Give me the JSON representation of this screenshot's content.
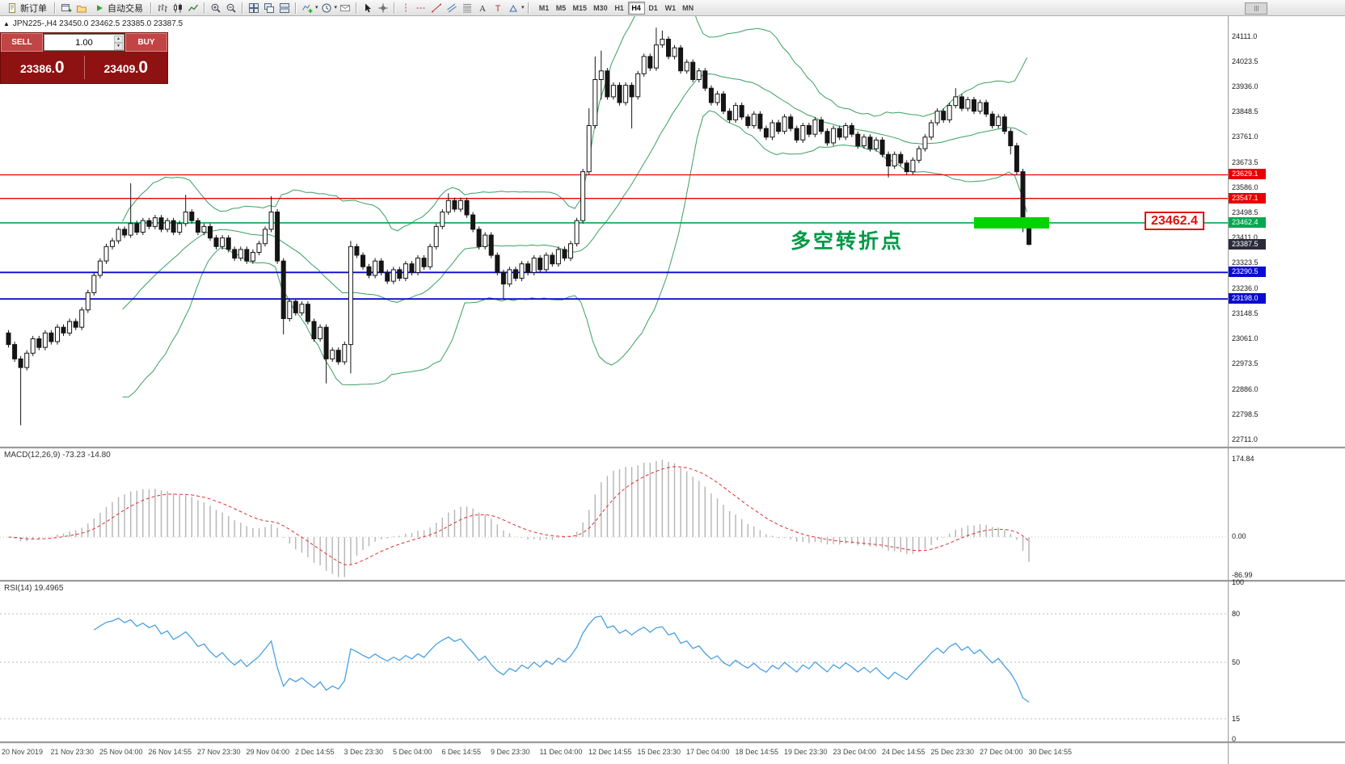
{
  "toolbar": {
    "new_order": "新订单",
    "auto_trading": "自动交易",
    "timeframes": [
      "M1",
      "M5",
      "M15",
      "M30",
      "H1",
      "H4",
      "D1",
      "W1",
      "MN"
    ],
    "active_timeframe": "H4"
  },
  "symbol_header": "JPN225-,H4  23450.0 23462.5 23385.0 23387.5",
  "trade_panel": {
    "sell": "SELL",
    "buy": "BUY",
    "volume": "1.00",
    "sell_price": "23386.",
    "sell_price_big": "0",
    "buy_price": "23409.",
    "buy_price_big": "0"
  },
  "main_chart": {
    "axis_labels": [
      "24111.0",
      "24023.5",
      "23936.0",
      "23848.5",
      "23761.0",
      "23673.5",
      "23586.0",
      "23498.5",
      "23411.0",
      "23323.5",
      "23236.0",
      "23148.5",
      "23061.0",
      "22973.5",
      "22886.0",
      "22798.5",
      "22711.0"
    ],
    "hlines": [
      {
        "price": 23629.1,
        "label": "23629.1",
        "color": "#e80000",
        "width": 1.3
      },
      {
        "price": 23547.1,
        "label": "23547.1",
        "color": "#e80000",
        "width": 1.3
      },
      {
        "price": 23462.4,
        "label": "23462.4",
        "color": "#00a94f",
        "width": 1.6
      },
      {
        "price": 23290.5,
        "label": "23290.5",
        "color": "#0a0ad0",
        "width": 1.8
      },
      {
        "price": 23198.0,
        "label": "23198.0",
        "color": "#0a0ad0",
        "width": 1.8
      }
    ],
    "current_price_tag": {
      "label": "23387.5",
      "price": 23387.5,
      "bg": "#2b2b3b"
    },
    "highlight_bar": {
      "price": 23462.4,
      "color": "#00d300"
    },
    "annotation": "多空转折点",
    "price_callout": "23462.4"
  },
  "macd_panel": {
    "label": "MACD(12,26,9) -73.23 -14.80",
    "axis_labels": [
      "174.84",
      "0.00",
      "-86.99"
    ]
  },
  "rsi_panel": {
    "label": "RSI(14) 19.4965",
    "axis_labels": [
      "100",
      "80",
      "50",
      "15",
      "0"
    ],
    "levels": [
      80,
      50,
      15
    ]
  },
  "time_axis": [
    "20 Nov 2019",
    "21 Nov 23:30",
    "25 Nov 04:00",
    "26 Nov 14:55",
    "27 Nov 23:30",
    "29 Nov 04:00",
    "2 Dec 14:55",
    "3 Dec 23:30",
    "5 Dec 04:00",
    "6 Dec 14:55",
    "9 Dec 23:30",
    "11 Dec 04:00",
    "12 Dec 14:55",
    "15 Dec 23:30",
    "17 Dec 04:00",
    "18 Dec 14:55",
    "19 Dec 23:30",
    "23 Dec 04:00",
    "24 Dec 14:55",
    "25 Dec 23:30",
    "27 Dec 04:00",
    "30 Dec 14:55"
  ],
  "colors": {
    "candle_up": "#ffffff",
    "candle_down": "#151515",
    "candle_stroke": "#151515",
    "bollinger": "#3aa060",
    "macd_hist": "#b4b4b4",
    "macd_signal": "#e03030",
    "rsi_line": "#4aa0e0",
    "annotation": "#009944",
    "callout": "#e01010",
    "trade_panel_bg": "#8e1212",
    "trade_button_bg": "#c24444"
  },
  "chart_data": {
    "type": "candlestick",
    "symbol": "JPN225-",
    "timeframe": "H4",
    "current_ohlc": {
      "open": 23450.0,
      "high": 23462.5,
      "low": 23385.0,
      "close": 23387.5
    },
    "visible_price_range": [
      22680,
      24180
    ],
    "indicators": [
      "Bollinger Bands",
      "MACD(12,26,9)",
      "RSI(14)"
    ],
    "macd_current": [
      -73.23,
      -14.8
    ],
    "rsi_current": 19.4965,
    "support_resistance_levels": [
      23629.1,
      23547.1,
      23462.4,
      23290.5,
      23198.0
    ],
    "candles_ohlc": [
      [
        23080,
        23090,
        23030,
        23040
      ],
      [
        23040,
        23050,
        22980,
        22990
      ],
      [
        22990,
        23000,
        22760,
        22960
      ],
      [
        22960,
        23020,
        22950,
        23010
      ],
      [
        23010,
        23070,
        23000,
        23060
      ],
      [
        23060,
        23070,
        23020,
        23030
      ],
      [
        23030,
        23090,
        23020,
        23080
      ],
      [
        23080,
        23090,
        23040,
        23050
      ],
      [
        23050,
        23110,
        23040,
        23100
      ],
      [
        23100,
        23110,
        23070,
        23080
      ],
      [
        23080,
        23130,
        23070,
        23120
      ],
      [
        23120,
        23130,
        23090,
        23100
      ],
      [
        23100,
        23170,
        23090,
        23160
      ],
      [
        23160,
        23230,
        23150,
        23220
      ],
      [
        23220,
        23290,
        23210,
        23280
      ],
      [
        23280,
        23340,
        23270,
        23330
      ],
      [
        23330,
        23390,
        23320,
        23380
      ],
      [
        23380,
        23410,
        23370,
        23400
      ],
      [
        23400,
        23450,
        23390,
        23440
      ],
      [
        23440,
        23450,
        23410,
        23420
      ],
      [
        23420,
        23600,
        23410,
        23460
      ],
      [
        23460,
        23470,
        23420,
        23430
      ],
      [
        23430,
        23480,
        23420,
        23470
      ],
      [
        23470,
        23480,
        23440,
        23450
      ],
      [
        23450,
        23490,
        23440,
        23480
      ],
      [
        23480,
        23490,
        23430,
        23440
      ],
      [
        23440,
        23480,
        23430,
        23470
      ],
      [
        23470,
        23480,
        23420,
        23430
      ],
      [
        23430,
        23470,
        23420,
        23460
      ],
      [
        23460,
        23560,
        23450,
        23500
      ],
      [
        23500,
        23510,
        23460,
        23470
      ],
      [
        23470,
        23480,
        23420,
        23430
      ],
      [
        23430,
        23460,
        23420,
        23450
      ],
      [
        23450,
        23460,
        23400,
        23410
      ],
      [
        23410,
        23420,
        23370,
        23380
      ],
      [
        23380,
        23420,
        23370,
        23410
      ],
      [
        23410,
        23420,
        23360,
        23370
      ],
      [
        23370,
        23380,
        23330,
        23340
      ],
      [
        23340,
        23380,
        23330,
        23370
      ],
      [
        23370,
        23380,
        23320,
        23330
      ],
      [
        23330,
        23370,
        23320,
        23360
      ],
      [
        23360,
        23400,
        23350,
        23390
      ],
      [
        23390,
        23450,
        23380,
        23440
      ],
      [
        23440,
        23555,
        23430,
        23500
      ],
      [
        23500,
        23510,
        23320,
        23330
      ],
      [
        23330,
        23340,
        23075,
        23130
      ],
      [
        23130,
        23200,
        23120,
        23190
      ],
      [
        23190,
        23200,
        23140,
        23150
      ],
      [
        23150,
        23190,
        23140,
        23180
      ],
      [
        23180,
        23190,
        23110,
        23120
      ],
      [
        23120,
        23130,
        23050,
        23060
      ],
      [
        23060,
        23110,
        23050,
        23100
      ],
      [
        23100,
        23110,
        22905,
        22990
      ],
      [
        22990,
        23030,
        22980,
        23020
      ],
      [
        23020,
        23030,
        22970,
        22980
      ],
      [
        22980,
        23050,
        22970,
        23040
      ],
      [
        23040,
        23400,
        22940,
        23380
      ],
      [
        23380,
        23390,
        23340,
        23350
      ],
      [
        23350,
        23360,
        23300,
        23310
      ],
      [
        23310,
        23320,
        23270,
        23280
      ],
      [
        23280,
        23340,
        23270,
        23330
      ],
      [
        23330,
        23340,
        23280,
        23290
      ],
      [
        23290,
        23300,
        23250,
        23260
      ],
      [
        23260,
        23310,
        23250,
        23300
      ],
      [
        23300,
        23310,
        23260,
        23270
      ],
      [
        23270,
        23330,
        23260,
        23320
      ],
      [
        23320,
        23330,
        23280,
        23290
      ],
      [
        23290,
        23350,
        23280,
        23340
      ],
      [
        23340,
        23350,
        23300,
        23310
      ],
      [
        23310,
        23390,
        23300,
        23380
      ],
      [
        23380,
        23460,
        23370,
        23450
      ],
      [
        23450,
        23510,
        23440,
        23500
      ],
      [
        23500,
        23565,
        23490,
        23540
      ],
      [
        23540,
        23550,
        23500,
        23510
      ],
      [
        23510,
        23550,
        23500,
        23540
      ],
      [
        23540,
        23550,
        23480,
        23490
      ],
      [
        23490,
        23500,
        23430,
        23440
      ],
      [
        23440,
        23450,
        23370,
        23380
      ],
      [
        23380,
        23430,
        23370,
        23420
      ],
      [
        23420,
        23430,
        23340,
        23350
      ],
      [
        23350,
        23360,
        23280,
        23290
      ],
      [
        23290,
        23300,
        23200,
        23250
      ],
      [
        23250,
        23310,
        23240,
        23300
      ],
      [
        23300,
        23310,
        23260,
        23270
      ],
      [
        23270,
        23330,
        23260,
        23320
      ],
      [
        23320,
        23330,
        23280,
        23290
      ],
      [
        23290,
        23350,
        23280,
        23340
      ],
      [
        23340,
        23350,
        23290,
        23300
      ],
      [
        23300,
        23360,
        23290,
        23350
      ],
      [
        23350,
        23360,
        23310,
        23320
      ],
      [
        23320,
        23380,
        23310,
        23370
      ],
      [
        23370,
        23380,
        23330,
        23340
      ],
      [
        23340,
        23400,
        23330,
        23390
      ],
      [
        23390,
        23480,
        23380,
        23470
      ],
      [
        23470,
        23650,
        23460,
        23640
      ],
      [
        23640,
        23860,
        23630,
        23800
      ],
      [
        23800,
        24040,
        23790,
        23960
      ],
      [
        23960,
        24060,
        23890,
        23990
      ],
      [
        23990,
        24000,
        23890,
        23900
      ],
      [
        23900,
        23950,
        23890,
        23940
      ],
      [
        23940,
        23950,
        23870,
        23880
      ],
      [
        23880,
        23950,
        23870,
        23940
      ],
      [
        23940,
        23950,
        23790,
        23900
      ],
      [
        23900,
        23990,
        23890,
        23980
      ],
      [
        23980,
        24050,
        23970,
        24040
      ],
      [
        24040,
        24050,
        23990,
        24000
      ],
      [
        24000,
        24140,
        23990,
        24080
      ],
      [
        24080,
        24130,
        24070,
        24100
      ],
      [
        24100,
        24110,
        24030,
        24040
      ],
      [
        24040,
        24080,
        24030,
        24070
      ],
      [
        24070,
        24080,
        23980,
        23990
      ],
      [
        23990,
        24030,
        23980,
        24020
      ],
      [
        24020,
        24030,
        23950,
        23960
      ],
      [
        23960,
        24000,
        23950,
        23990
      ],
      [
        23990,
        24000,
        23920,
        23930
      ],
      [
        23930,
        23940,
        23870,
        23880
      ],
      [
        23880,
        23920,
        23870,
        23910
      ],
      [
        23910,
        23920,
        23840,
        23850
      ],
      [
        23850,
        23860,
        23810,
        23820
      ],
      [
        23820,
        23880,
        23810,
        23870
      ],
      [
        23870,
        23880,
        23820,
        23830
      ],
      [
        23830,
        23840,
        23790,
        23800
      ],
      [
        23800,
        23850,
        23790,
        23840
      ],
      [
        23840,
        23850,
        23780,
        23790
      ],
      [
        23790,
        23800,
        23750,
        23760
      ],
      [
        23760,
        23820,
        23750,
        23810
      ],
      [
        23810,
        23820,
        23770,
        23780
      ],
      [
        23780,
        23840,
        23770,
        23830
      ],
      [
        23830,
        23840,
        23780,
        23790
      ],
      [
        23790,
        23800,
        23740,
        23750
      ],
      [
        23750,
        23810,
        23740,
        23800
      ],
      [
        23800,
        23810,
        23760,
        23770
      ],
      [
        23770,
        23830,
        23760,
        23820
      ],
      [
        23820,
        23830,
        23770,
        23780
      ],
      [
        23780,
        23790,
        23730,
        23740
      ],
      [
        23740,
        23800,
        23730,
        23790
      ],
      [
        23790,
        23800,
        23750,
        23760
      ],
      [
        23760,
        23810,
        23750,
        23800
      ],
      [
        23800,
        23810,
        23760,
        23770
      ],
      [
        23770,
        23780,
        23720,
        23730
      ],
      [
        23730,
        23770,
        23720,
        23760
      ],
      [
        23760,
        23770,
        23710,
        23720
      ],
      [
        23720,
        23760,
        23710,
        23750
      ],
      [
        23750,
        23760,
        23690,
        23700
      ],
      [
        23700,
        23710,
        23620,
        23660
      ],
      [
        23660,
        23710,
        23650,
        23700
      ],
      [
        23700,
        23710,
        23660,
        23670
      ],
      [
        23670,
        23680,
        23630,
        23640
      ],
      [
        23640,
        23690,
        23630,
        23680
      ],
      [
        23680,
        23730,
        23670,
        23720
      ],
      [
        23720,
        23770,
        23710,
        23760
      ],
      [
        23760,
        23820,
        23750,
        23810
      ],
      [
        23810,
        23860,
        23800,
        23850
      ],
      [
        23850,
        23860,
        23810,
        23820
      ],
      [
        23820,
        23880,
        23810,
        23870
      ],
      [
        23870,
        23930,
        23860,
        23900
      ],
      [
        23900,
        23910,
        23850,
        23860
      ],
      [
        23860,
        23900,
        23850,
        23890
      ],
      [
        23890,
        23900,
        23840,
        23850
      ],
      [
        23850,
        23890,
        23840,
        23880
      ],
      [
        23880,
        23890,
        23830,
        23840
      ],
      [
        23840,
        23850,
        23790,
        23800
      ],
      [
        23800,
        23840,
        23790,
        23830
      ],
      [
        23830,
        23840,
        23770,
        23780
      ],
      [
        23780,
        23790,
        23700,
        23730
      ],
      [
        23730,
        23740,
        23630,
        23640
      ],
      [
        23640,
        23650,
        23430,
        23460
      ],
      [
        23450,
        23462.5,
        23385,
        23387.5
      ]
    ]
  }
}
